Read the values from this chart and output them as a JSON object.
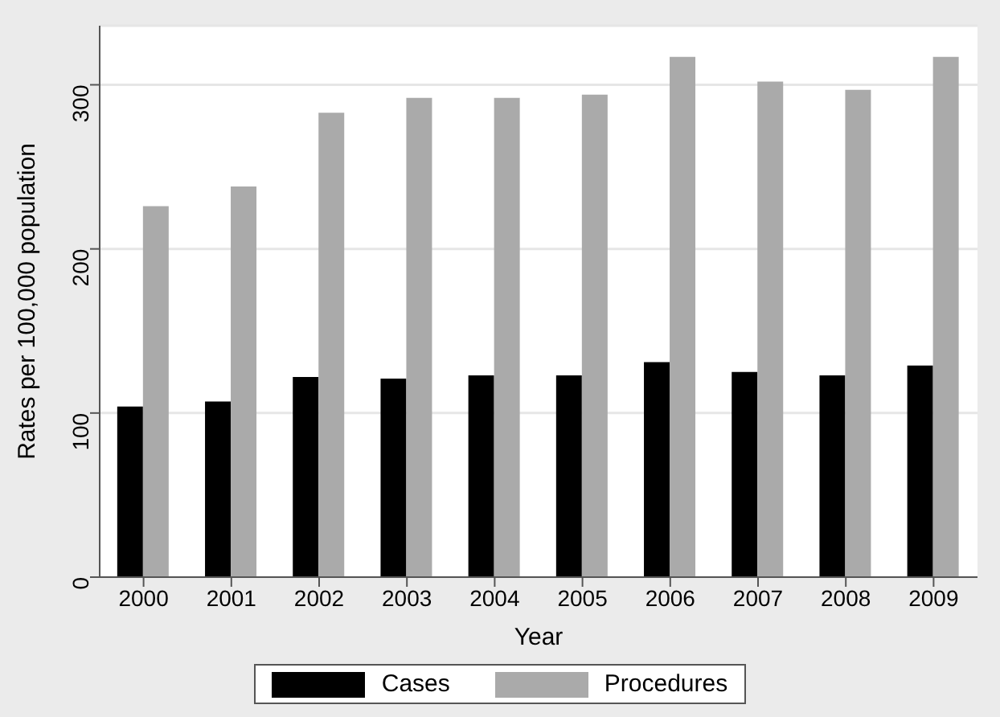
{
  "chart_data": {
    "type": "bar",
    "xlabel": "Year",
    "ylabel": "Rates per 100,000 population",
    "categories": [
      "2000",
      "2001",
      "2002",
      "2003",
      "2004",
      "2005",
      "2006",
      "2007",
      "2008",
      "2009"
    ],
    "series": [
      {
        "name": "Cases",
        "color": "#000000",
        "values": [
          104,
          107,
          122,
          121,
          123,
          123,
          131,
          125,
          123,
          129
        ]
      },
      {
        "name": "Procedures",
        "color": "#aaaaaa",
        "values": [
          226,
          238,
          283,
          292,
          292,
          294,
          317,
          302,
          297,
          317
        ]
      }
    ],
    "ylim": [
      0,
      336
    ],
    "yticks": [
      0,
      100,
      200,
      300
    ],
    "grid": "y",
    "legend": "bottom"
  }
}
